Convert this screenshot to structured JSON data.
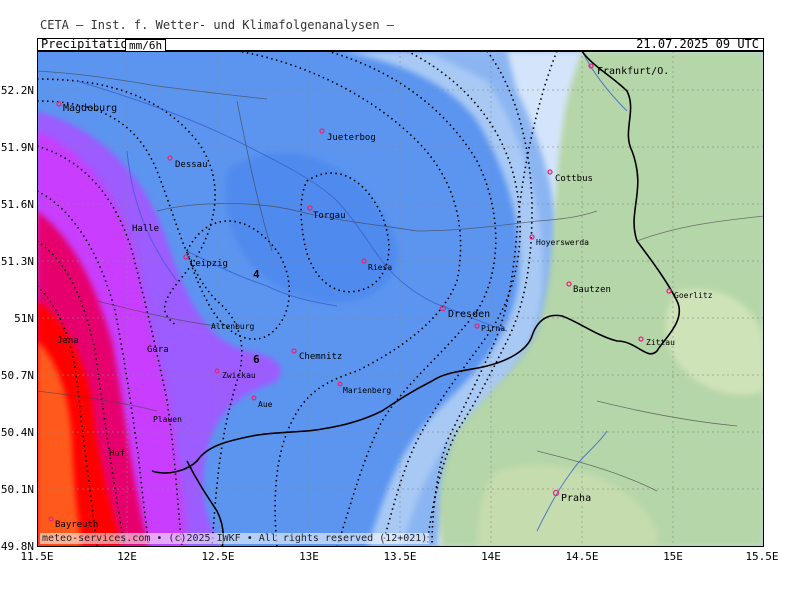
{
  "header": {
    "title": "CETA — Inst. f. Wetter- und Klimafolgenanalysen —",
    "parameter": "Precipitation",
    "unit": "mm/6h",
    "datetime": "21.07.2025 09 UTC"
  },
  "footer": "meteo-services.com • (c)2025 IWKF • All rights reserved (12+021)",
  "axes": {
    "lon_ticks": [
      "11.5E",
      "12E",
      "12.5E",
      "13E",
      "13.5E",
      "14E",
      "14.5E",
      "15E",
      "15.5E"
    ],
    "lat_ticks": [
      "52.2N",
      "51.9N",
      "51.6N",
      "51.3N",
      "51N",
      "50.7N",
      "50.4N",
      "50.1N",
      "49.8N"
    ]
  },
  "colors": {
    "heavy": "#ff0000",
    "orange": "#ff5a1e",
    "magenta": "#e6006e",
    "purple": "#c83cff",
    "violet": "#9d5cff",
    "blue": "#5b95f0",
    "light_blue": "#a9c9f5",
    "pale_blue": "#d4e5fb",
    "dry_green": "#b5d6a8",
    "city_marker": "#e0297a"
  },
  "isolines": [
    {
      "label": "4"
    },
    {
      "label": "6"
    }
  ],
  "cities": [
    {
      "name": "Magdeburg"
    },
    {
      "name": "Jueterbog"
    },
    {
      "name": "Dessau"
    },
    {
      "name": "Frankfurt/O."
    },
    {
      "name": "Cottbus"
    },
    {
      "name": "Torgau"
    },
    {
      "name": "Halle"
    },
    {
      "name": "Hoyerswerda"
    },
    {
      "name": "Leipzig"
    },
    {
      "name": "Riesa"
    },
    {
      "name": "Bautzen"
    },
    {
      "name": "Goerlitz"
    },
    {
      "name": "Dresden"
    },
    {
      "name": "Pirna"
    },
    {
      "name": "Altenburg"
    },
    {
      "name": "Zittau"
    },
    {
      "name": "Jena"
    },
    {
      "name": "Gera"
    },
    {
      "name": "Chemnitz"
    },
    {
      "name": "Zwickau"
    },
    {
      "name": "Marienberg"
    },
    {
      "name": "Aue"
    },
    {
      "name": "Plauen"
    },
    {
      "name": "Hof"
    },
    {
      "name": "Praha"
    },
    {
      "name": "Bayreuth"
    }
  ]
}
